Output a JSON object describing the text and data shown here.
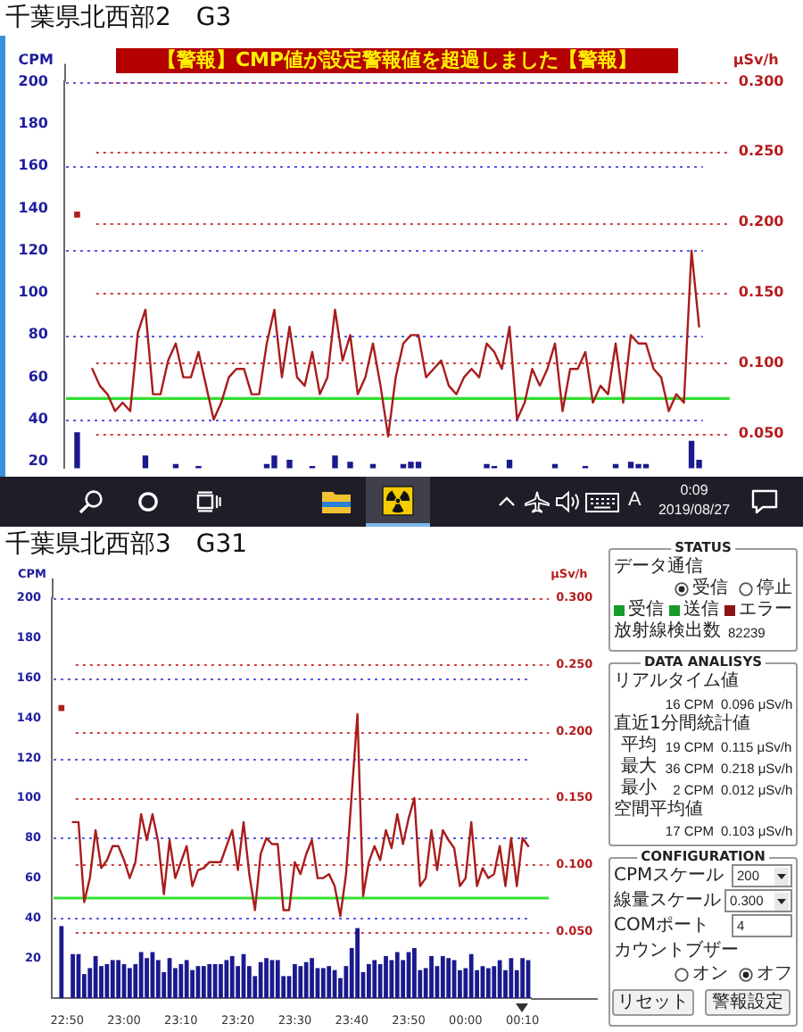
{
  "chart_data": [
    {
      "type": "line",
      "title": "千葉県北西部2　G3",
      "annotations": [
        "【警報】CMP値が設定警報値を超過しました【警報】"
      ],
      "ylabel": "CPM",
      "y2label": "μSv/h",
      "categories": [
        null,
        null,
        null,
        null,
        null,
        null,
        null,
        null,
        null,
        null,
        null,
        null,
        null,
        null,
        null,
        null,
        null,
        null,
        null,
        null,
        null,
        null,
        null,
        null,
        null,
        null,
        null,
        null,
        null,
        null,
        null,
        null,
        null,
        null,
        null,
        null,
        null,
        null,
        null,
        null,
        null,
        null,
        null,
        null,
        null,
        null,
        null,
        null,
        null,
        null,
        null,
        null,
        null,
        null,
        null,
        null,
        null,
        null,
        null,
        null,
        null,
        null,
        null,
        null,
        null,
        null,
        null,
        null,
        null,
        null,
        null,
        null,
        null,
        null,
        null,
        null,
        null,
        null,
        null,
        null,
        null,
        null,
        null
      ],
      "series": [
        {
          "type": "bar",
          "color": "#1a1a8e",
          "values": [
            34,
            null,
            null,
            null,
            null,
            null,
            null,
            null,
            null,
            23,
            null,
            null,
            null,
            19,
            null,
            null,
            18,
            null,
            null,
            null,
            null,
            null,
            null,
            null,
            null,
            19,
            23,
            null,
            21,
            null,
            null,
            18,
            null,
            null,
            23,
            null,
            20,
            null,
            null,
            19,
            null,
            null,
            null,
            19,
            20,
            20,
            null,
            null,
            null,
            null,
            null,
            null,
            null,
            null,
            19,
            18,
            null,
            21,
            null,
            null,
            null,
            null,
            null,
            19,
            null,
            null,
            null,
            18,
            null,
            null,
            null,
            19,
            null,
            20,
            19,
            19,
            null,
            null,
            null,
            null,
            null,
            30,
            21
          ]
        },
        {
          "type": "line",
          "color": "#a81c1c",
          "values": [
            null,
            null,
            64,
            56,
            52,
            44,
            48,
            44,
            81,
            92,
            52,
            52,
            68,
            76,
            60,
            60,
            72,
            56,
            40,
            48,
            60,
            64,
            64,
            52,
            52,
            76,
            92,
            60,
            84,
            60,
            56,
            72,
            52,
            60,
            92,
            68,
            80,
            52,
            60,
            76,
            56,
            32,
            60,
            76,
            80,
            80,
            60,
            64,
            68,
            56,
            52,
            60,
            64,
            60,
            76,
            72,
            64,
            84,
            40,
            48,
            64,
            56,
            64,
            76,
            44,
            64,
            64,
            72,
            48,
            56,
            52,
            76,
            48,
            80,
            76,
            76,
            64,
            60,
            44,
            52,
            48,
            120,
            84
          ]
        },
        {
          "type": "scatter",
          "color": "#b02020",
          "marker": "square",
          "values": [
            137,
            null,
            null,
            null,
            null,
            null,
            null,
            null,
            null,
            null,
            null,
            null,
            null,
            null,
            null,
            null,
            null,
            null,
            null,
            null,
            null,
            null,
            null,
            null,
            null,
            null,
            null,
            null,
            null,
            null,
            null,
            null,
            null,
            null,
            null,
            null,
            null,
            null,
            null,
            null,
            null,
            null,
            null,
            null,
            null,
            null,
            null,
            null,
            null,
            null,
            null,
            null,
            null,
            null,
            null,
            null,
            null,
            null,
            null,
            null,
            null,
            null,
            null,
            null,
            null,
            null,
            null,
            null,
            null,
            null,
            null,
            null,
            null,
            null,
            null,
            null,
            null,
            null,
            null,
            null,
            null,
            null,
            null
          ]
        }
      ],
      "ylim": [
        17,
        200
      ],
      "yticks": [
        20,
        40,
        60,
        80,
        100,
        120,
        140,
        160,
        180,
        200
      ],
      "y2lim": [
        0.0255,
        0.3
      ],
      "y2ticks": [
        {
          "value": 0.05,
          "label": "0.050"
        },
        {
          "value": 0.1,
          "label": "0.100"
        },
        {
          "value": 0.15,
          "label": "0.150"
        },
        {
          "value": 0.2,
          "label": "0.200"
        },
        {
          "value": 0.25,
          "label": "0.250"
        },
        {
          "value": 0.3,
          "label": "0.300"
        }
      ],
      "grid": "y",
      "ref_lines": [
        {
          "axis": "y",
          "value": 50,
          "color": "#33e033"
        }
      ],
      "marker": "none",
      "line_style": "solid"
    },
    {
      "type": "other",
      "annotations": [
        "A",
        "0:09",
        "2019/08/27"
      ]
    },
    {
      "type": "line",
      "title": "千葉県北西部3　G31",
      "ylabel": "CPM",
      "y2label": "μSv/h",
      "categories": [
        null,
        "22:50",
        null,
        null,
        null,
        null,
        null,
        null,
        null,
        null,
        null,
        "23:00",
        null,
        null,
        null,
        null,
        null,
        null,
        null,
        null,
        null,
        "23:10",
        null,
        null,
        null,
        null,
        null,
        null,
        null,
        null,
        null,
        "23:20",
        null,
        null,
        null,
        null,
        null,
        null,
        null,
        null,
        null,
        "23:30",
        null,
        null,
        null,
        null,
        null,
        null,
        null,
        null,
        null,
        "23:40",
        null,
        null,
        null,
        null,
        null,
        null,
        null,
        null,
        null,
        "23:50",
        null,
        null,
        null,
        null,
        null,
        null,
        null,
        null,
        null,
        "00:00",
        null,
        null,
        null,
        null,
        null,
        null,
        null,
        null,
        null,
        "00:10",
        null
      ],
      "series": [
        {
          "type": "bar",
          "color": "#1a1a8e",
          "values": [
            36,
            null,
            22,
            22,
            12,
            15,
            21,
            16,
            17,
            19,
            19,
            17,
            15,
            17,
            23,
            20,
            23,
            19,
            13,
            20,
            15,
            17,
            19,
            14,
            16,
            16,
            17,
            17,
            17,
            19,
            21,
            16,
            22,
            16,
            11,
            18,
            20,
            19,
            19,
            11,
            11,
            17,
            16,
            18,
            20,
            15,
            15,
            16,
            14,
            10,
            16,
            25,
            35,
            13,
            17,
            19,
            17,
            21,
            19,
            23,
            19,
            23,
            25,
            14,
            15,
            21,
            16,
            21,
            20,
            19,
            14,
            15,
            22,
            14,
            16,
            15,
            16,
            19,
            14,
            20,
            14,
            20,
            19
          ]
        },
        {
          "type": "line",
          "color": "#a81c1c",
          "values": [
            null,
            null,
            88,
            88,
            48,
            60,
            84,
            65,
            69,
            76,
            76,
            69,
            60,
            68,
            92,
            79,
            92,
            78,
            52,
            79,
            60,
            68,
            76,
            56,
            64,
            65,
            68,
            68,
            68,
            76,
            84,
            64,
            88,
            62,
            44,
            72,
            80,
            77,
            77,
            44,
            44,
            68,
            62,
            72,
            79,
            60,
            60,
            62,
            56,
            41,
            62,
            102,
            142,
            51,
            68,
            76,
            69,
            84,
            75,
            92,
            77,
            90,
            100,
            56,
            60,
            84,
            64,
            84,
            79,
            75,
            56,
            60,
            88,
            56,
            65,
            60,
            62,
            76,
            56,
            80,
            56,
            80,
            76
          ]
        },
        {
          "type": "scatter",
          "color": "#b02020",
          "marker": "square",
          "values": [
            145,
            null,
            null,
            null,
            null,
            null,
            null,
            null,
            null,
            null,
            null,
            null,
            null,
            null,
            null,
            null,
            null,
            null,
            null,
            null,
            null,
            null,
            null,
            null,
            null,
            null,
            null,
            null,
            null,
            null,
            null,
            null,
            null,
            null,
            null,
            null,
            null,
            null,
            null,
            null,
            null,
            null,
            null,
            null,
            null,
            null,
            null,
            null,
            null,
            null,
            null,
            null,
            null,
            null,
            null,
            null,
            null,
            null,
            null,
            null,
            null,
            null,
            null,
            null,
            null,
            null,
            null,
            null,
            null,
            null,
            null,
            null,
            null,
            null,
            null,
            null,
            null,
            null,
            null,
            null,
            null,
            null,
            null
          ]
        }
      ],
      "ylim": [
        0,
        200
      ],
      "yticks": [
        20,
        40,
        60,
        80,
        100,
        120,
        140,
        160,
        180,
        200
      ],
      "y2lim": [
        0,
        0.3
      ],
      "y2ticks": [
        {
          "value": 0.05,
          "label": "0.050"
        },
        {
          "value": 0.1,
          "label": "0.100"
        },
        {
          "value": 0.15,
          "label": "0.150"
        },
        {
          "value": 0.2,
          "label": "0.200"
        },
        {
          "value": 0.25,
          "label": "0.250"
        },
        {
          "value": 0.3,
          "label": "0.300"
        }
      ],
      "grid": "y",
      "ref_lines": [
        {
          "axis": "y",
          "value": 50,
          "color": "#33e033"
        }
      ],
      "marker": "none",
      "line_style": "solid"
    },
    {
      "type": "other",
      "annotations": [
        "STATUS",
        "データ通信",
        "受信",
        "停止",
        "受信",
        "送信",
        "エラー",
        "放射線検出数",
        "82239",
        "DATA ANALISYS",
        "リアルタイム値",
        "16 CPM",
        "0.096 μSv/h",
        "直近1分間統計値",
        "平均",
        "19 CPM",
        "0.115 μSv/h",
        "最大",
        "36 CPM",
        "0.218 μSv/h",
        "最小",
        "2 CPM",
        "0.012 μSv/h",
        "空間平均値",
        "17 CPM",
        "0.103 μSv/h",
        "CONFIGURATION",
        "CPMスケール",
        "200",
        "線量スケール",
        "0.300",
        "COMポート",
        "4",
        "カウントブザー",
        "オン",
        "オフ",
        "リセット",
        "警報設定"
      ]
    }
  ]
}
